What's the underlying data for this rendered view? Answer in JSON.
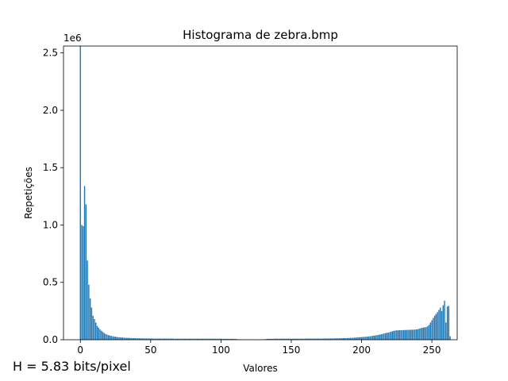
{
  "chart_data": {
    "type": "bar",
    "title": "Histograma de zebra.bmp",
    "xlabel": "Valores",
    "ylabel": "Repetições",
    "y_scale_label": "1e6",
    "xlim": [
      -12,
      268
    ],
    "ylim": [
      0,
      2.56
    ],
    "x_ticks": [
      0,
      50,
      100,
      150,
      200,
      250
    ],
    "y_ticks": [
      0.0,
      0.5,
      1.0,
      1.5,
      2.0,
      2.5
    ],
    "x_tick_labels": [
      "0",
      "50",
      "100",
      "150",
      "200",
      "250"
    ],
    "y_tick_labels": [
      "0.0",
      "0.5",
      "1.0",
      "1.5",
      "2.0",
      "2.5"
    ],
    "bar_color": "#1f77b4",
    "grid": false,
    "values": [
      2.56,
      1.0,
      0.99,
      1.34,
      1.18,
      0.69,
      0.48,
      0.36,
      0.28,
      0.21,
      0.18,
      0.15,
      0.12,
      0.105,
      0.09,
      0.078,
      0.068,
      0.058,
      0.05,
      0.044,
      0.04,
      0.036,
      0.033,
      0.03,
      0.028,
      0.026,
      0.024,
      0.022,
      0.021,
      0.02,
      0.019,
      0.018,
      0.017,
      0.016,
      0.016,
      0.015,
      0.015,
      0.014,
      0.014,
      0.013,
      0.013,
      0.013,
      0.012,
      0.012,
      0.012,
      0.012,
      0.011,
      0.011,
      0.011,
      0.011,
      0.011,
      0.011,
      0.01,
      0.01,
      0.01,
      0.01,
      0.01,
      0.01,
      0.01,
      0.01,
      0.01,
      0.01,
      0.01,
      0.01,
      0.01,
      0.01,
      0.01,
      0.009,
      0.009,
      0.009,
      0.009,
      0.009,
      0.009,
      0.009,
      0.009,
      0.009,
      0.009,
      0.009,
      0.009,
      0.009,
      0.009,
      0.009,
      0.009,
      0.009,
      0.009,
      0.009,
      0.009,
      0.009,
      0.009,
      0.009,
      0.009,
      0.009,
      0.009,
      0.009,
      0.009,
      0.009,
      0.009,
      0.009,
      0.009,
      0.009,
      0.009,
      0.008,
      0.008,
      0.008,
      0.008,
      0.008,
      0.008,
      0.008,
      0.008,
      0.008,
      0.008,
      0.006,
      0.004,
      0.003,
      0.003,
      0.002,
      0.002,
      0.002,
      0.002,
      0.002,
      0.002,
      0.002,
      0.002,
      0.002,
      0.002,
      0.002,
      0.002,
      0.002,
      0.002,
      0.002,
      0.003,
      0.004,
      0.006,
      0.008,
      0.008,
      0.008,
      0.008,
      0.008,
      0.009,
      0.009,
      0.009,
      0.009,
      0.009,
      0.009,
      0.009,
      0.009,
      0.009,
      0.009,
      0.009,
      0.009,
      0.009,
      0.009,
      0.009,
      0.009,
      0.009,
      0.009,
      0.009,
      0.009,
      0.009,
      0.009,
      0.009,
      0.01,
      0.01,
      0.01,
      0.01,
      0.01,
      0.01,
      0.01,
      0.01,
      0.01,
      0.01,
      0.01,
      0.01,
      0.01,
      0.011,
      0.011,
      0.011,
      0.011,
      0.011,
      0.011,
      0.012,
      0.012,
      0.012,
      0.012,
      0.013,
      0.013,
      0.013,
      0.014,
      0.014,
      0.014,
      0.015,
      0.015,
      0.016,
      0.016,
      0.017,
      0.018,
      0.019,
      0.02,
      0.021,
      0.022,
      0.023,
      0.024,
      0.025,
      0.026,
      0.027,
      0.028,
      0.03,
      0.032,
      0.034,
      0.036,
      0.038,
      0.04,
      0.042,
      0.045,
      0.048,
      0.051,
      0.054,
      0.057,
      0.06,
      0.063,
      0.066,
      0.07,
      0.074,
      0.078,
      0.08,
      0.082,
      0.082,
      0.083,
      0.083,
      0.084,
      0.084,
      0.085,
      0.085,
      0.086,
      0.086,
      0.087,
      0.087,
      0.088,
      0.088,
      0.09,
      0.092,
      0.096,
      0.1,
      0.104,
      0.106,
      0.108,
      0.11,
      0.118,
      0.13,
      0.15,
      0.17,
      0.19,
      0.21,
      0.225,
      0.24,
      0.26,
      0.28,
      0.25,
      0.3,
      0.34,
      0.15,
      0.29,
      0.295,
      0.03
    ]
  },
  "annotations": {
    "entropy": "H = 5.83 bits/pixel"
  }
}
